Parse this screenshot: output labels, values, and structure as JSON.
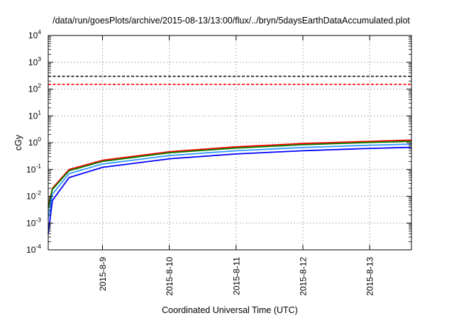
{
  "chart_data": {
    "type": "line",
    "title": "/data/run/goesPlots/archive/2015-08-13/13:00/flux/../bryn/5daysEarthDataAccumulated.plot",
    "xlabel": "Coordinated Universal Time (UTC)",
    "ylabel": "cGy",
    "x_ticks": [
      "2015-8-9",
      "2015-8-10",
      "2015-8-11",
      "2015-8-12",
      "2015-8-13"
    ],
    "xlim": [
      "2015-08-08 04:30",
      "2015-08-13 15:00"
    ],
    "y_scale": "log",
    "ylim": [
      0.0001,
      10000
    ],
    "y_ticks": [
      {
        "base": "10",
        "exp": "-4"
      },
      {
        "base": "10",
        "exp": "-3"
      },
      {
        "base": "10",
        "exp": "-2"
      },
      {
        "base": "10",
        "exp": "-1"
      },
      {
        "base": "10",
        "exp": "0"
      },
      {
        "base": "10",
        "exp": "1"
      },
      {
        "base": "10",
        "exp": "2"
      },
      {
        "base": "10",
        "exp": "3"
      },
      {
        "base": "10",
        "exp": "4"
      }
    ],
    "grid": true,
    "reference_lines": [
      {
        "value": 300,
        "color": "#000000",
        "style": "dashed"
      },
      {
        "value": 150,
        "color": "#ff0000",
        "style": "dashed"
      }
    ],
    "series": [
      {
        "color": "#ff0000",
        "x": [
          "2015-08-08 04:30",
          "2015-08-08 06:00",
          "2015-08-08 12:00",
          "2015-08-09 00:00",
          "2015-08-10 00:00",
          "2015-08-11 00:00",
          "2015-08-12 00:00",
          "2015-08-13 00:00",
          "2015-08-13 15:00"
        ],
        "y": [
          0.004,
          0.02,
          0.1,
          0.22,
          0.46,
          0.7,
          0.93,
          1.12,
          1.25
        ]
      },
      {
        "color": "#008000",
        "x": [
          "2015-08-08 04:30",
          "2015-08-08 06:00",
          "2015-08-08 12:00",
          "2015-08-09 00:00",
          "2015-08-10 00:00",
          "2015-08-11 00:00",
          "2015-08-12 00:00",
          "2015-08-13 00:00",
          "2015-08-13 15:00"
        ],
        "y": [
          0.0035,
          0.018,
          0.09,
          0.2,
          0.42,
          0.63,
          0.84,
          1.02,
          1.13
        ]
      },
      {
        "color": "#3399ff",
        "x": [
          "2015-08-08 04:30",
          "2015-08-08 06:00",
          "2015-08-08 12:00",
          "2015-08-09 00:00",
          "2015-08-10 00:00",
          "2015-08-11 00:00",
          "2015-08-12 00:00",
          "2015-08-13 00:00",
          "2015-08-13 15:00"
        ],
        "y": [
          0.0015,
          0.012,
          0.07,
          0.16,
          0.33,
          0.5,
          0.66,
          0.8,
          0.88
        ]
      },
      {
        "color": "#0000ff",
        "x": [
          "2015-08-08 04:30",
          "2015-08-08 06:00",
          "2015-08-08 12:00",
          "2015-08-09 00:00",
          "2015-08-10 00:00",
          "2015-08-11 00:00",
          "2015-08-12 00:00",
          "2015-08-13 00:00",
          "2015-08-13 15:00"
        ],
        "y": [
          0.0004,
          0.007,
          0.05,
          0.12,
          0.25,
          0.38,
          0.5,
          0.61,
          0.67
        ]
      }
    ]
  }
}
